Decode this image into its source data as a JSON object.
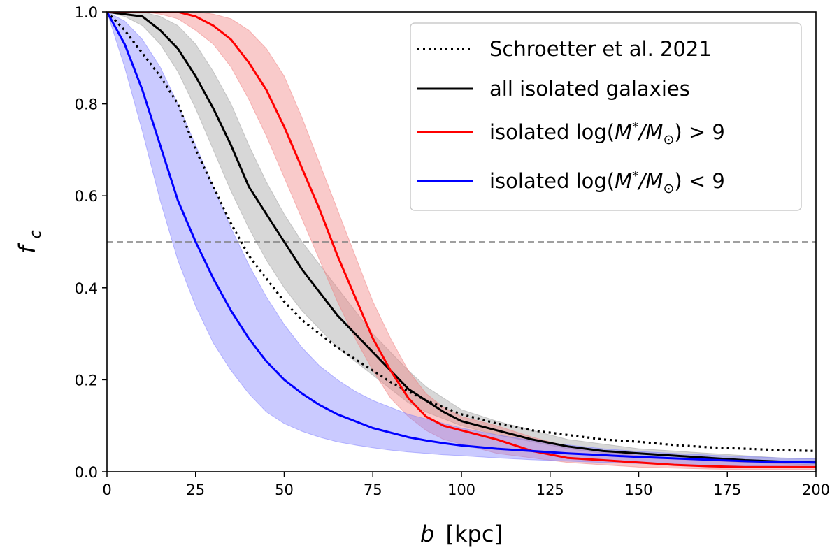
{
  "chart_data": {
    "type": "line",
    "title": "",
    "xlabel": "b [kpc]",
    "xlabel_var": "b",
    "xlabel_unit": "[kpc]",
    "ylabel": "f_c",
    "ylabel_var": "f",
    "ylabel_sub": "c",
    "xlim": [
      0,
      200
    ],
    "ylim": [
      0.0,
      1.0
    ],
    "xticks": [
      0,
      25,
      50,
      75,
      100,
      125,
      150,
      175,
      200
    ],
    "xtick_labels": [
      "0",
      "25",
      "50",
      "75",
      "100",
      "125",
      "150",
      "175",
      "200"
    ],
    "yticks": [
      0.0,
      0.2,
      0.4,
      0.6,
      0.8,
      1.0
    ],
    "ytick_labels": [
      "0.0",
      "0.2",
      "0.4",
      "0.6",
      "0.8",
      "1.0"
    ],
    "grid": false,
    "legend_position": "top-right",
    "reference_line": {
      "y": 0.5,
      "style": "dashed",
      "color": "#808080"
    },
    "x": [
      0,
      5,
      10,
      15,
      20,
      25,
      30,
      35,
      40,
      45,
      50,
      55,
      60,
      65,
      70,
      75,
      80,
      85,
      90,
      95,
      100,
      110,
      120,
      130,
      140,
      150,
      160,
      170,
      180,
      190,
      200
    ],
    "series": [
      {
        "name": "Schroetter et al. 2021",
        "legend_label": "Schroetter et al. 2021",
        "color": "#000000",
        "style": "dotted",
        "band": false,
        "values": [
          1.0,
          0.96,
          0.91,
          0.86,
          0.8,
          0.7,
          0.62,
          0.54,
          0.47,
          0.42,
          0.37,
          0.33,
          0.3,
          0.27,
          0.245,
          0.22,
          0.195,
          0.175,
          0.155,
          0.14,
          0.125,
          0.105,
          0.09,
          0.08,
          0.07,
          0.065,
          0.058,
          0.053,
          0.05,
          0.047,
          0.045
        ]
      },
      {
        "name": "all isolated galaxies",
        "legend_label": "all isolated galaxies",
        "color": "#000000",
        "fill_color": "#a0a0a0",
        "style": "solid",
        "band": true,
        "values": [
          1.0,
          0.995,
          0.99,
          0.96,
          0.92,
          0.86,
          0.79,
          0.71,
          0.62,
          0.56,
          0.5,
          0.44,
          0.39,
          0.34,
          0.3,
          0.26,
          0.22,
          0.18,
          0.155,
          0.13,
          0.11,
          0.09,
          0.07,
          0.055,
          0.045,
          0.04,
          0.035,
          0.03,
          0.025,
          0.022,
          0.02
        ],
        "lower": [
          1.0,
          0.99,
          0.97,
          0.93,
          0.87,
          0.79,
          0.7,
          0.61,
          0.53,
          0.46,
          0.4,
          0.35,
          0.31,
          0.27,
          0.24,
          0.21,
          0.18,
          0.15,
          0.13,
          0.115,
          0.1,
          0.08,
          0.065,
          0.05,
          0.04,
          0.035,
          0.03,
          0.025,
          0.02,
          0.018,
          0.015
        ],
        "upper": [
          1.0,
          1.0,
          1.0,
          0.99,
          0.97,
          0.93,
          0.87,
          0.8,
          0.71,
          0.63,
          0.56,
          0.5,
          0.45,
          0.4,
          0.35,
          0.3,
          0.26,
          0.22,
          0.185,
          0.16,
          0.135,
          0.11,
          0.09,
          0.07,
          0.06,
          0.05,
          0.045,
          0.04,
          0.035,
          0.03,
          0.028
        ]
      },
      {
        "name": "isolated log(M*/M☉) > 9",
        "legend_label_prefix": "isolated log(",
        "legend_label_m1": "M",
        "legend_label_star": "*",
        "legend_label_slash": "/",
        "legend_label_m2": "M",
        "legend_label_sun": "⊙",
        "legend_label_suffix": ") > 9",
        "color": "#ff0000",
        "fill_color": "#f08080",
        "style": "solid",
        "band": true,
        "values": [
          1.0,
          1.0,
          1.0,
          1.0,
          1.0,
          0.99,
          0.97,
          0.94,
          0.89,
          0.83,
          0.75,
          0.66,
          0.57,
          0.47,
          0.38,
          0.29,
          0.22,
          0.16,
          0.12,
          0.1,
          0.09,
          0.07,
          0.045,
          0.03,
          0.025,
          0.02,
          0.015,
          0.012,
          0.01,
          0.01,
          0.01
        ],
        "lower": [
          1.0,
          1.0,
          1.0,
          0.995,
          0.985,
          0.96,
          0.93,
          0.88,
          0.81,
          0.73,
          0.64,
          0.55,
          0.46,
          0.37,
          0.29,
          0.22,
          0.16,
          0.12,
          0.09,
          0.07,
          0.06,
          0.04,
          0.03,
          0.02,
          0.015,
          0.01,
          0.008,
          0.006,
          0.005,
          0.005,
          0.005
        ],
        "upper": [
          1.0,
          1.0,
          1.0,
          1.0,
          1.0,
          1.0,
          0.995,
          0.985,
          0.96,
          0.92,
          0.86,
          0.77,
          0.67,
          0.57,
          0.47,
          0.37,
          0.29,
          0.22,
          0.17,
          0.14,
          0.12,
          0.1,
          0.075,
          0.055,
          0.045,
          0.035,
          0.028,
          0.024,
          0.02,
          0.018,
          0.015
        ]
      },
      {
        "name": "isolated log(M*/M☉) < 9",
        "legend_label_prefix": "isolated log(",
        "legend_label_m1": "M",
        "legend_label_star": "*",
        "legend_label_slash": "/",
        "legend_label_m2": "M",
        "legend_label_sun": "⊙",
        "legend_label_suffix": ") < 9",
        "color": "#0000ff",
        "fill_color": "#8080ff",
        "style": "solid",
        "band": true,
        "values": [
          1.0,
          0.93,
          0.83,
          0.71,
          0.59,
          0.5,
          0.42,
          0.35,
          0.29,
          0.24,
          0.2,
          0.17,
          0.145,
          0.125,
          0.11,
          0.095,
          0.085,
          0.075,
          0.068,
          0.062,
          0.057,
          0.05,
          0.045,
          0.04,
          0.036,
          0.032,
          0.029,
          0.026,
          0.023,
          0.021,
          0.02
        ],
        "lower": [
          1.0,
          0.88,
          0.74,
          0.59,
          0.46,
          0.36,
          0.28,
          0.22,
          0.17,
          0.13,
          0.105,
          0.088,
          0.075,
          0.065,
          0.058,
          0.052,
          0.047,
          0.043,
          0.04,
          0.037,
          0.035,
          0.03,
          0.026,
          0.023,
          0.02,
          0.018,
          0.016,
          0.014,
          0.013,
          0.012,
          0.011
        ],
        "upper": [
          1.0,
          0.98,
          0.94,
          0.88,
          0.8,
          0.71,
          0.62,
          0.53,
          0.45,
          0.38,
          0.32,
          0.27,
          0.23,
          0.2,
          0.175,
          0.155,
          0.14,
          0.125,
          0.115,
          0.105,
          0.095,
          0.08,
          0.068,
          0.058,
          0.05,
          0.044,
          0.04,
          0.036,
          0.033,
          0.03,
          0.028
        ]
      }
    ]
  }
}
